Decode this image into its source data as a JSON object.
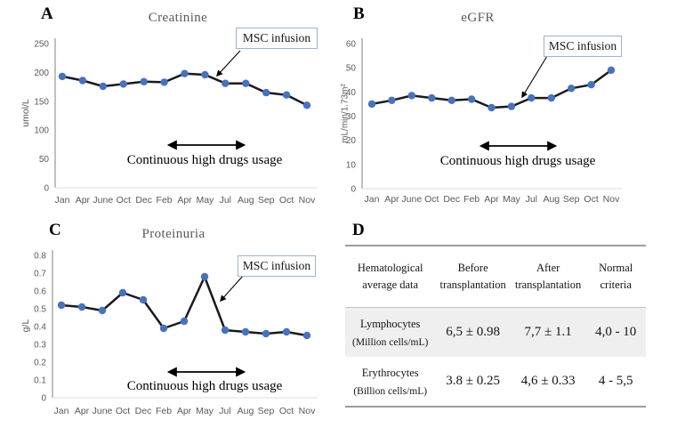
{
  "colors": {
    "line": "#1a1a1a",
    "marker": "#4472c4",
    "axis_line": "#a6a6a6",
    "baseline": "#dcdcdc",
    "tick_text": "#595959",
    "title_text": "#595959",
    "callout_border": "#9db3d1",
    "table_rule": "#9c9c9c",
    "table_band": "#efefef"
  },
  "panels": [
    {
      "label": "A"
    },
    {
      "label": "B"
    },
    {
      "label": "C"
    },
    {
      "label": "D"
    }
  ],
  "chart_data": [
    {
      "type": "line",
      "panel": "A",
      "title": "Creatinine",
      "ylabel": "umol/L",
      "categories": [
        "Jan",
        "Apr",
        "June",
        "Oct",
        "Dec",
        "Feb",
        "Apr",
        "May",
        "Jul",
        "Aug",
        "Sep",
        "Oct",
        "Nov"
      ],
      "values": [
        193,
        186,
        176,
        180,
        184,
        183,
        198,
        196,
        181,
        181,
        165,
        161,
        143
      ],
      "ylim": [
        0,
        250
      ],
      "ytick_step": 50,
      "grid": false,
      "legend": "none",
      "annotations": {
        "msc": "MSC infusion",
        "drugs": "Continuous high drugs usage"
      }
    },
    {
      "type": "line",
      "panel": "B",
      "title": "eGFR",
      "ylabel": "mL/min/1.73m²",
      "categories": [
        "Jan",
        "Apr",
        "June",
        "Oct",
        "Dec",
        "Feb",
        "Apr",
        "May",
        "Jul",
        "Aug",
        "Sep",
        "Oct",
        "Nov"
      ],
      "values": [
        35,
        36.5,
        38.5,
        37.5,
        36.5,
        37,
        33.5,
        34,
        37.5,
        37.5,
        41.5,
        43,
        49
      ],
      "ylim": [
        0,
        60
      ],
      "ytick_step": 10,
      "grid": false,
      "legend": "none",
      "annotations": {
        "msc": "MSC infusion",
        "drugs": "Continuous high drugs usage"
      }
    },
    {
      "type": "line",
      "panel": "C",
      "title": "Proteinuria",
      "ylabel": "g/L",
      "categories": [
        "Jan",
        "Apr",
        "June",
        "Oct",
        "Dec",
        "Feb",
        "Apr",
        "May",
        "Jul",
        "Aug",
        "Sep",
        "Oct",
        "Nov"
      ],
      "values": [
        0.52,
        0.51,
        0.49,
        0.59,
        0.55,
        0.39,
        0.43,
        0.68,
        0.38,
        0.37,
        0.36,
        0.37,
        0.35
      ],
      "ylim": [
        0,
        0.8
      ],
      "ytick_step": 0.1,
      "grid": false,
      "legend": "none",
      "annotations": {
        "msc": "MSC infusion",
        "drugs": "Continuous high drugs usage"
      }
    },
    {
      "type": "table",
      "panel": "D",
      "columns": [
        "Hematological average data",
        "Before transplantation",
        "After transplantation",
        "Normal criteria"
      ],
      "rows": [
        {
          "name": "Lymphocytes",
          "unit": "(Million cells/mL)",
          "before": "6,5 ± 0.98",
          "after": "7,7 ± 1.1",
          "normal": "4,0 - 10",
          "shaded": true
        },
        {
          "name": "Erythrocytes",
          "unit": "(Billion cells/mL)",
          "before": "3.8 ± 0.25",
          "after": "4,6 ± 0.33",
          "normal": "4 - 5,5",
          "shaded": false
        }
      ]
    }
  ]
}
